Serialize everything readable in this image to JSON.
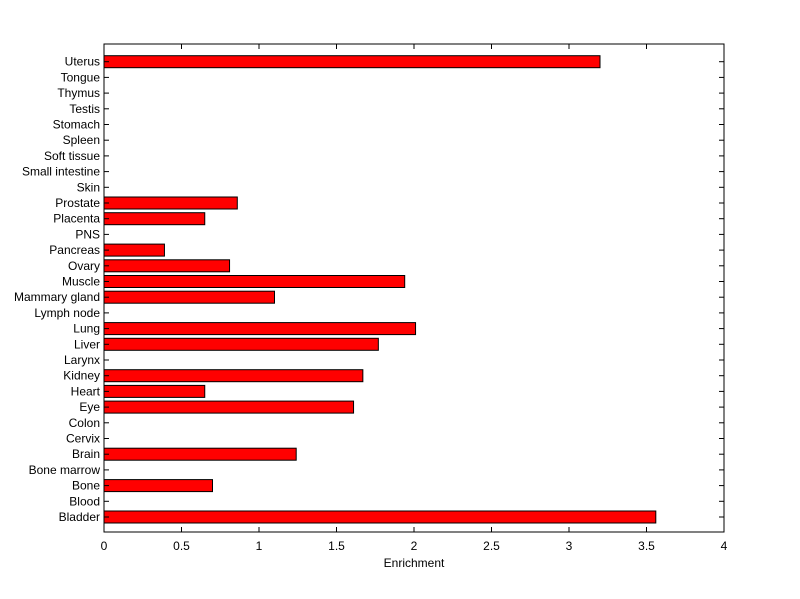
{
  "chart_data": {
    "type": "bar",
    "orientation": "horizontal",
    "title": "",
    "xlabel": "Enrichment",
    "ylabel": "",
    "xlim": [
      0,
      4
    ],
    "xticks": [
      0,
      0.5,
      1,
      1.5,
      2,
      2.5,
      3,
      3.5,
      4
    ],
    "xtick_labels": [
      "0",
      "0.5",
      "1",
      "1.5",
      "2",
      "2.5",
      "3",
      "3.5",
      "4"
    ],
    "grid": false,
    "bar_color": "#ff0000",
    "edge_color": "#000000",
    "categories": [
      "Bladder",
      "Blood",
      "Bone",
      "Bone marrow",
      "Brain",
      "Cervix",
      "Colon",
      "Eye",
      "Heart",
      "Kidney",
      "Larynx",
      "Liver",
      "Lung",
      "Lymph node",
      "Mammary gland",
      "Muscle",
      "Ovary",
      "Pancreas",
      "PNS",
      "Placenta",
      "Prostate",
      "Skin",
      "Small intestine",
      "Soft tissue",
      "Spleen",
      "Stomach",
      "Testis",
      "Thymus",
      "Tongue",
      "Uterus"
    ],
    "values": [
      3.56,
      0,
      0.7,
      0,
      1.24,
      0,
      0,
      1.61,
      0.65,
      1.67,
      0,
      1.77,
      2.01,
      0,
      1.1,
      1.94,
      0.81,
      0.39,
      0,
      0.65,
      0.86,
      0,
      0,
      0,
      0,
      0,
      0,
      0,
      0,
      3.2
    ]
  }
}
